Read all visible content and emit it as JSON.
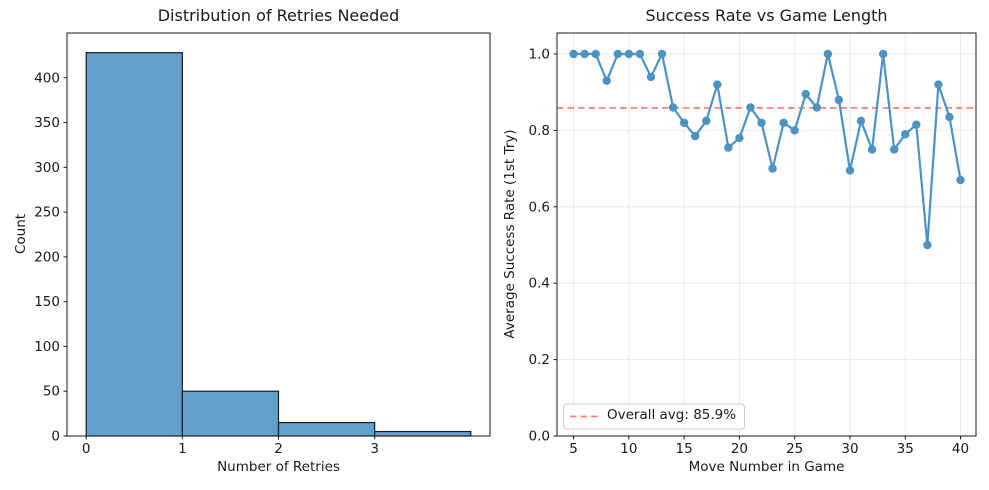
{
  "figure": {
    "background": "#ffffff",
    "text_color": "#1a1a1a"
  },
  "chart_data": [
    {
      "type": "bar",
      "title": "Distribution of Retries Needed",
      "xlabel": "Number of Retries",
      "ylabel": "Count",
      "bin_edges": [
        0,
        1,
        2,
        3,
        4
      ],
      "values": [
        428,
        50,
        15,
        5
      ],
      "xticks": [
        0,
        1,
        2,
        3
      ],
      "yticks": [
        0,
        50,
        100,
        150,
        200,
        250,
        300,
        350,
        400
      ],
      "xlim": [
        -0.2,
        4.2
      ],
      "ylim": [
        0,
        450
      ],
      "grid": false,
      "bar_fill": "#62a0cb",
      "bar_edge": "#1a1a1a"
    },
    {
      "type": "line",
      "title": "Success Rate vs Game Length",
      "xlabel": "Move Number in Game",
      "ylabel": "Average Success Rate (1st Try)",
      "x": [
        5,
        6,
        7,
        8,
        9,
        10,
        11,
        12,
        13,
        14,
        15,
        16,
        17,
        18,
        19,
        20,
        21,
        22,
        23,
        24,
        25,
        26,
        27,
        28,
        29,
        30,
        31,
        32,
        33,
        34,
        35,
        36,
        37,
        38,
        39,
        40
      ],
      "y": [
        1.0,
        1.0,
        1.0,
        0.93,
        1.0,
        1.0,
        1.0,
        0.94,
        1.0,
        0.86,
        0.82,
        0.785,
        0.825,
        0.92,
        0.755,
        0.78,
        0.86,
        0.82,
        0.7,
        0.82,
        0.8,
        0.895,
        0.86,
        1.0,
        0.88,
        0.695,
        0.825,
        0.75,
        1.0,
        0.75,
        0.79,
        0.815,
        0.5,
        0.92,
        0.835,
        0.67
      ],
      "xticks": [
        5,
        10,
        15,
        20,
        25,
        30,
        35,
        40
      ],
      "yticks": [
        0.0,
        0.2,
        0.4,
        0.6,
        0.8,
        1.0
      ],
      "ytick_decimals": 1,
      "xlim": [
        3.5,
        41.4
      ],
      "ylim": [
        0,
        1.055
      ],
      "grid": true,
      "grid_color": "#e8e8e8",
      "line_color": "#4c92c3",
      "marker": "circle",
      "avg_line": {
        "value": 0.859,
        "color": "#ff7f7f",
        "label": "Overall avg: 85.9%"
      },
      "legend_position": "lower left"
    }
  ]
}
